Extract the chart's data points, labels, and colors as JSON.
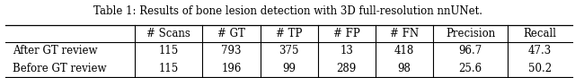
{
  "title": "Table 1: Results of bone lesion detection with 3D full-resolution nnUNet.",
  "col_labels": [
    "",
    "# Scans",
    "# GT",
    "# TP",
    "# FP",
    "# FN",
    "Precision",
    "Recall"
  ],
  "rows": [
    [
      "After GT review",
      "115",
      "793",
      "375",
      "13",
      "418",
      "96.7",
      "47.3"
    ],
    [
      "Before GT review",
      "115",
      "196",
      "99",
      "289",
      "98",
      "25.6",
      "50.2"
    ]
  ],
  "col_widths": [
    1.9,
    1.0,
    0.85,
    0.85,
    0.85,
    0.85,
    1.1,
    0.95
  ],
  "bg_color": "#ffffff",
  "text_color": "#000000",
  "title_fontsize": 8.5,
  "cell_fontsize": 8.5,
  "figsize": [
    6.4,
    0.87
  ],
  "dpi": 100
}
